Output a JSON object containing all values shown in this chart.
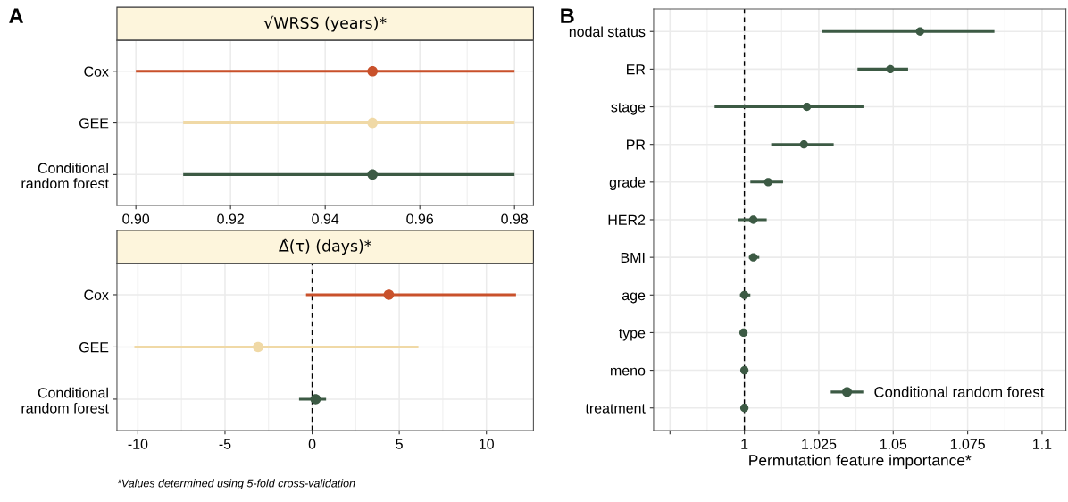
{
  "chart_data": [
    {
      "type": "scatter",
      "orientation": "horizontal",
      "title": "√WRSS (years)*",
      "categories": [
        "Cox",
        "GEE",
        "Conditional\nrandom forest"
      ],
      "values": [
        0.95,
        0.95,
        0.95
      ],
      "colors": [
        "#c9512b",
        "#f0d9a6",
        "#3c5a44"
      ],
      "errors": [
        [
          0.9,
          0.98
        ],
        [
          0.91,
          0.98
        ],
        [
          0.91,
          0.98
        ]
      ],
      "xlim": [
        0.896,
        0.984
      ],
      "xticks": [
        {
          "value": 0.9,
          "label": "0.90"
        },
        0.92,
        0.94,
        0.96,
        0.98
      ],
      "grid": true,
      "marker": "circle",
      "legend": false,
      "annotations": [
        "A"
      ]
    },
    {
      "type": "scatter",
      "orientation": "horizontal",
      "title": "Δ̂(τ) (days)*",
      "categories": [
        "Cox",
        "GEE",
        "Conditional\nrandom forest"
      ],
      "values": [
        4.4,
        -3.1,
        0.2
      ],
      "colors": [
        "#c9512b",
        "#f0d9a6",
        "#3c5a44"
      ],
      "errors": [
        [
          -0.35,
          11.7
        ],
        [
          -10.2,
          6.1
        ],
        [
          -0.75,
          0.8
        ]
      ],
      "xlim": [
        -11.2,
        12.7
      ],
      "xticks": [
        -10,
        -5,
        0,
        5,
        10
      ],
      "grid": true,
      "marker": "circle",
      "legend": false,
      "ref_lines": [
        {
          "axis": "x",
          "value": 0,
          "line_style": "dashed",
          "color": "#000000"
        }
      ],
      "annotations": [
        "*Values determined using 5-fold cross-validation"
      ]
    },
    {
      "type": "scatter",
      "orientation": "horizontal",
      "xlabel": "Permutation feature importance*",
      "categories": [
        "nodal status",
        "ER",
        "stage",
        "PR",
        "grade",
        "HER2",
        "BMI",
        "age",
        "type",
        "meno",
        "treatment"
      ],
      "series": [
        {
          "name": "Conditional random forest",
          "color": "#3c5a44",
          "values": [
            1.059,
            1.049,
            1.021,
            1.02,
            1.008,
            1.003,
            1.003,
            1.0,
            0.9997,
            1.0,
            1.0
          ],
          "errors": [
            [
              1.026,
              1.084
            ],
            [
              1.038,
              1.055
            ],
            [
              0.99,
              1.04
            ],
            [
              1.009,
              1.03
            ],
            [
              1.002,
              1.013
            ],
            [
              0.998,
              1.0075
            ],
            [
              1.0015,
              1.005
            ],
            [
              0.9985,
              1.002
            ],
            null,
            null,
            null
          ]
        }
      ],
      "xlim": [
        0.9695,
        1.108
      ],
      "xticks": [
        {
          "value": 0.975,
          "label": null
        },
        1,
        1.025,
        1.05,
        1.075,
        1.1
      ],
      "grid": true,
      "marker": "circle",
      "legend": "bottom right",
      "ref_lines": [
        {
          "axis": "x",
          "value": 1,
          "line_style": "dashed",
          "color": "#000000"
        }
      ],
      "annotations": [
        "B"
      ]
    }
  ]
}
